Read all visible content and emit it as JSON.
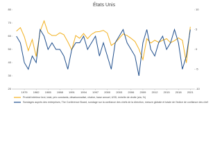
{
  "chart_data": {
    "type": "line",
    "title": "États Unis",
    "x": [
      1977,
      1978,
      1979,
      1980,
      1981,
      1982,
      1983,
      1984,
      1985,
      1986,
      1987,
      1988,
      1989,
      1990,
      1991,
      1992,
      1993,
      1994,
      1995,
      1996,
      1997,
      1998,
      1999,
      2000,
      2001,
      2002,
      2003,
      2004,
      2005,
      2006,
      2007,
      2008,
      2009,
      2010,
      2011,
      2012,
      2013,
      2014,
      2015,
      2016,
      2017,
      2018,
      2019,
      2020,
      2021
    ],
    "xlim": [
      1976,
      2022
    ],
    "xticks": [
      1979,
      1982,
      1985,
      1988,
      1991,
      1994,
      1997,
      2000,
      2003,
      2006,
      2009,
      2012,
      2015,
      2018,
      2021
    ],
    "ylim": [
      20,
      80
    ],
    "yticks": [
      20,
      30,
      40,
      50,
      60,
      70,
      80
    ],
    "y2lim": [
      -10,
      10
    ],
    "y2ticks": [
      -10,
      -5,
      0,
      5,
      10
    ],
    "grid": false,
    "series": [
      {
        "name": "Produit intérieur brut, total, prix constants, désaisonnalisé, chaîne, base annuel, USD, échelle de droite (a/a, %)",
        "color": "#f2b01e",
        "axis": "y2",
        "values": [
          4.6,
          5.5,
          3.2,
          -0.3,
          2.5,
          -1.8,
          4.6,
          7.2,
          4.2,
          3.5,
          3.5,
          4.2,
          3.7,
          1.9,
          -0.1,
          3.5,
          2.8,
          4.0,
          2.7,
          3.8,
          4.4,
          4.5,
          4.8,
          4.1,
          1.0,
          1.7,
          2.8,
          3.9,
          3.5,
          2.8,
          2.0,
          0.1,
          -2.6,
          2.7,
          1.6,
          2.3,
          1.8,
          2.3,
          2.7,
          1.7,
          2.2,
          2.9,
          2.3,
          -3.4,
          5.7
        ]
      },
      {
        "name": "Sondages auprès des entreprises, The Conference Board, sondage sur la confiance des chefs de la direction, mesure globale et totale de l'indice de confiance des chefs de la direction, échelle de droite",
        "color": "#1f4e8c",
        "values": [
          60,
          55,
          40,
          35,
          45,
          40,
          65,
          60,
          50,
          55,
          50,
          50,
          45,
          35,
          50,
          55,
          55,
          60,
          50,
          55,
          60,
          45,
          55,
          45,
          35,
          55,
          60,
          65,
          55,
          50,
          45,
          30,
          55,
          65,
          50,
          45,
          55,
          60,
          50,
          55,
          65,
          55,
          35,
          45,
          65
        ]
      }
    ]
  }
}
